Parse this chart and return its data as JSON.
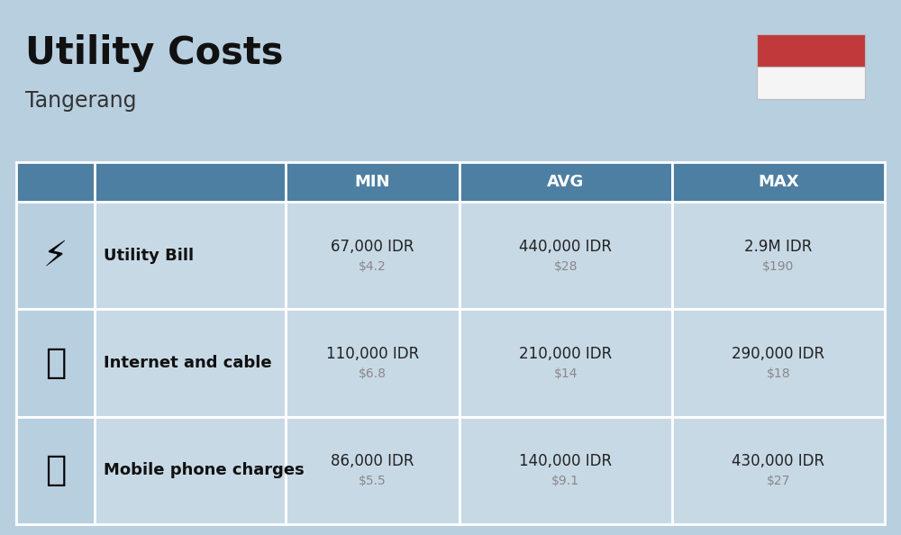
{
  "title": "Utility Costs",
  "subtitle": "Tangerang",
  "background_color": "#b8cfe0",
  "header_color": "#4d7fa3",
  "header_text_color": "#ffffff",
  "row_bg_color": "#c8d9e6",
  "icon_col_bg": "#b8cfe0",
  "table_border_color": "#ffffff",
  "rows": [
    {
      "label": "Utility Bill",
      "min_idr": "67,000 IDR",
      "min_usd": "$4.2",
      "avg_idr": "440,000 IDR",
      "avg_usd": "$28",
      "max_idr": "2.9M IDR",
      "max_usd": "$190"
    },
    {
      "label": "Internet and cable",
      "min_idr": "110,000 IDR",
      "min_usd": "$6.8",
      "avg_idr": "210,000 IDR",
      "avg_usd": "$14",
      "max_idr": "290,000 IDR",
      "max_usd": "$18"
    },
    {
      "label": "Mobile phone charges",
      "min_idr": "86,000 IDR",
      "min_usd": "$5.5",
      "avg_idr": "140,000 IDR",
      "avg_usd": "$9.1",
      "max_idr": "430,000 IDR",
      "max_usd": "$27"
    }
  ],
  "flag_red": "#c0393b",
  "flag_white": "#f5f5f5",
  "label_color": "#111111",
  "idr_color": "#222222",
  "usd_color": "#888888",
  "title_color": "#111111",
  "subtitle_color": "#333333"
}
